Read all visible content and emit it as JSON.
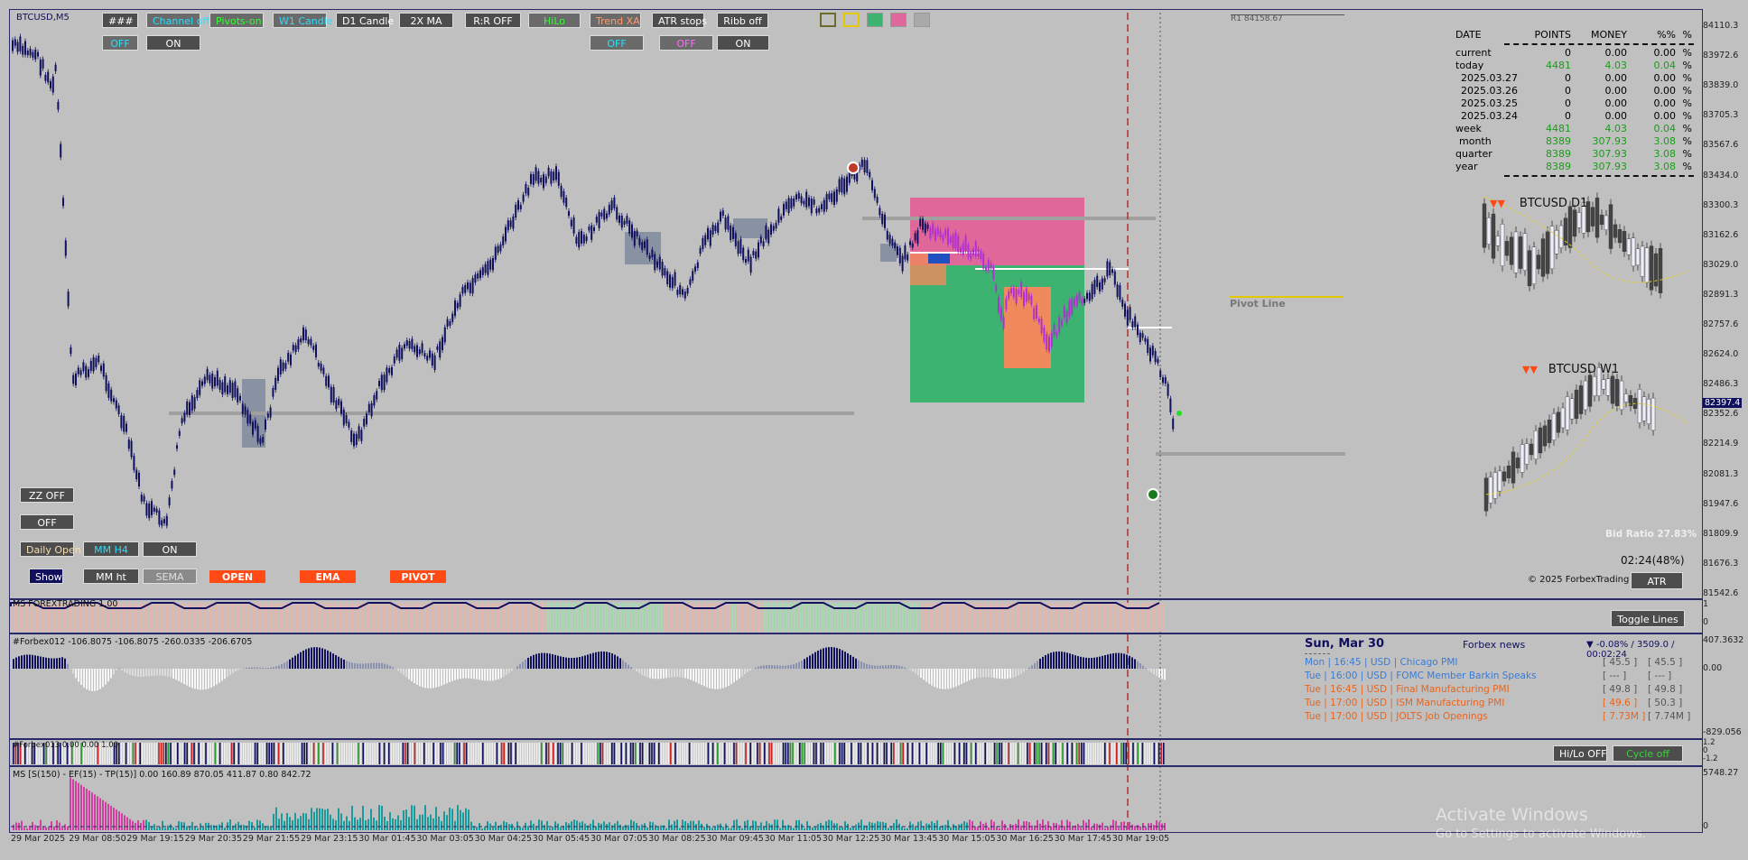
{
  "symbol_label": "BTCUSD,M5",
  "toolbar_row1": [
    {
      "id": "hash",
      "label": "###",
      "style": "dark"
    },
    {
      "id": "channel",
      "label": "Channel off",
      "style": "cyan"
    },
    {
      "id": "pivots",
      "label": "Pivots-on",
      "style": "green"
    },
    {
      "id": "w1candle",
      "label": "W1 Candle",
      "style": "cyan"
    },
    {
      "id": "d1candle",
      "label": "D1 Candle",
      "style": "dark"
    },
    {
      "id": "ma2x",
      "label": "2X MA",
      "style": "dark"
    },
    {
      "id": "rr",
      "label": "R:R OFF",
      "style": "dark"
    },
    {
      "id": "hilo",
      "label": "HiLo",
      "style": "green"
    },
    {
      "id": "trendxa",
      "label": "Trend XA",
      "style": "orange"
    },
    {
      "id": "atrstops",
      "label": "ATR stops",
      "style": "dark"
    },
    {
      "id": "ribb",
      "label": "Ribb off",
      "style": "dark"
    }
  ],
  "toolbar_row2": [
    {
      "id": "off1",
      "label": "OFF",
      "style": "cyan"
    },
    {
      "id": "on1",
      "label": "ON",
      "style": "dark"
    },
    {
      "id": "off2",
      "label": "OFF",
      "style": "cyan"
    },
    {
      "id": "off3",
      "label": "OFF",
      "style": "magenta"
    },
    {
      "id": "on2",
      "label": "ON",
      "style": "dark"
    }
  ],
  "color_swatches": [
    "#c0c0c0",
    "#c0c0c0",
    "#3cb371",
    "#e0679a",
    "#a9a9a9"
  ],
  "left_buttons": {
    "zz": "ZZ OFF",
    "off": "OFF",
    "daily_open": "Daily Open",
    "mm_h4": "MM H4",
    "on": "ON",
    "show": "Show",
    "mm_ht": "MM ht",
    "sema": "SEMA",
    "open": "OPEN",
    "ema": "EMA",
    "pivot": "PIVOT"
  },
  "r1_label": "R1 84158.67",
  "pivot_line_label": "Pivot Line",
  "stats": {
    "headers": [
      "DATE",
      "POINTS",
      "MONEY",
      "%%",
      "%"
    ],
    "rows": [
      {
        "d": "current",
        "p": "0",
        "m": "0.00",
        "pc": "0.00",
        "u": "%",
        "green": false
      },
      {
        "d": "today",
        "p": "4481",
        "m": "4.03",
        "pc": "0.04",
        "u": "%",
        "green": true
      },
      {
        "d": "2025.03.27",
        "p": "0",
        "m": "0.00",
        "pc": "0.00",
        "u": "%",
        "green": false
      },
      {
        "d": "2025.03.26",
        "p": "0",
        "m": "0.00",
        "pc": "0.00",
        "u": "%",
        "green": false
      },
      {
        "d": "2025.03.25",
        "p": "0",
        "m": "0.00",
        "pc": "0.00",
        "u": "%",
        "green": false
      },
      {
        "d": "2025.03.24",
        "p": "0",
        "m": "0.00",
        "pc": "0.00",
        "u": "%",
        "green": false
      },
      {
        "d": "week",
        "p": "4481",
        "m": "4.03",
        "pc": "0.04",
        "u": "%",
        "green": true
      },
      {
        "d": "month",
        "p": "8389",
        "m": "307.93",
        "pc": "3.08",
        "u": "%",
        "green": true
      },
      {
        "d": "quarter",
        "p": "8389",
        "m": "307.93",
        "pc": "3.08",
        "u": "%",
        "green": true
      },
      {
        "d": "year",
        "p": "8389",
        "m": "307.93",
        "pc": "3.08",
        "u": "%",
        "green": true
      }
    ]
  },
  "mini_d1": "BTCUSD D1",
  "mini_w1": "BTCUSD W1",
  "bid_ratio": "Bid Ratio 27.83%",
  "timer": "02:24(48%)",
  "copyright": "© 2025 ForbexTrading",
  "atr_button": "ATR",
  "toggle_lines": "Toggle Lines",
  "hilo_off": "Hi/Lo OFF",
  "cycle_off": "Cycle off",
  "price_axis": [
    "84110.3",
    "83972.6",
    "83839.0",
    "83705.3",
    "83567.6",
    "83434.0",
    "83300.3",
    "83162.6",
    "83029.0",
    "82891.3",
    "82757.6",
    "82624.0",
    "82486.3",
    "82352.6",
    "82214.9",
    "82081.3",
    "81947.6",
    "81809.9",
    "81676.3",
    "81542.6"
  ],
  "current_price": "82397.4",
  "time_axis": [
    "29 Mar 2025",
    "29 Mar 08:50",
    "29 Mar 19:15",
    "29 Mar 20:35",
    "29 Mar 21:55",
    "29 Mar 23:15",
    "30 Mar 01:45",
    "30 Mar 03:05",
    "30 Mar 04:25",
    "30 Mar 05:45",
    "30 Mar 07:05",
    "30 Mar 08:25",
    "30 Mar 09:45",
    "30 Mar 11:05",
    "30 Mar 12:25",
    "30 Mar 13:45",
    "30 Mar 15:05",
    "30 Mar 16:25",
    "30 Mar 17:45",
    "30 Mar 19:05"
  ],
  "ind1_label": "MS FOREXTRADING 1.00",
  "ind1_axis": [
    "1",
    "0"
  ],
  "ind2_label": "#Forbex012 -106.8075 -106.8075 -260.0335 -206.6705",
  "ind2_axis": [
    "407.3632",
    "0.00",
    "-829.056"
  ],
  "ind3_label": "#Forbex013 0.00 0.00 1.00",
  "ind3_axis": [
    "1.2",
    "0",
    "-1.2"
  ],
  "ind4_label": "MS [S(150) - EF(15) - TP(15)] 0.00 160.89 870.05 411.87 0.80 842.72",
  "ind4_axis": [
    "5748.27",
    "0"
  ],
  "news": {
    "date": "Sun, Mar 30",
    "title": "Forbex news",
    "change": "▼ -0.08% / 3509.0 / 00:02:24",
    "items": [
      {
        "text": "Mon  |  16:45  |  USD  |  Chicago PMI",
        "v1": "[ 45.5 ]",
        "v2": "[ 45.5 ]",
        "color": "#3a7bd5"
      },
      {
        "text": "Tue  |  16:00  |  USD  |  FOMC Member Barkin Speaks",
        "v1": "[ --- ]",
        "v2": "[ --- ]",
        "color": "#3a7bd5"
      },
      {
        "text": "Tue  |  16:45  |  USD  |  Final Manufacturing PMI",
        "v1": "[ 49.8 ]",
        "v2": "[ 49.8 ]",
        "color": "#e8641e"
      },
      {
        "text": "Tue  |  17:00  |  USD  |  ISM Manufacturing PMI",
        "v1": "[ 49.6 ]",
        "v2": "[ 50.3 ]",
        "color": "#e8641e",
        "v1color": "#e8641e"
      },
      {
        "text": "Tue  |  17:00  |  USD  |  JOLTS Job Openings",
        "v1": "[ 7.73M ]",
        "v2": "[ 7.74M ]",
        "color": "#e8641e",
        "v1color": "#e8641e"
      }
    ]
  },
  "watermark_title": "Activate Windows",
  "watermark_sub": "Go to Settings to activate Windows."
}
